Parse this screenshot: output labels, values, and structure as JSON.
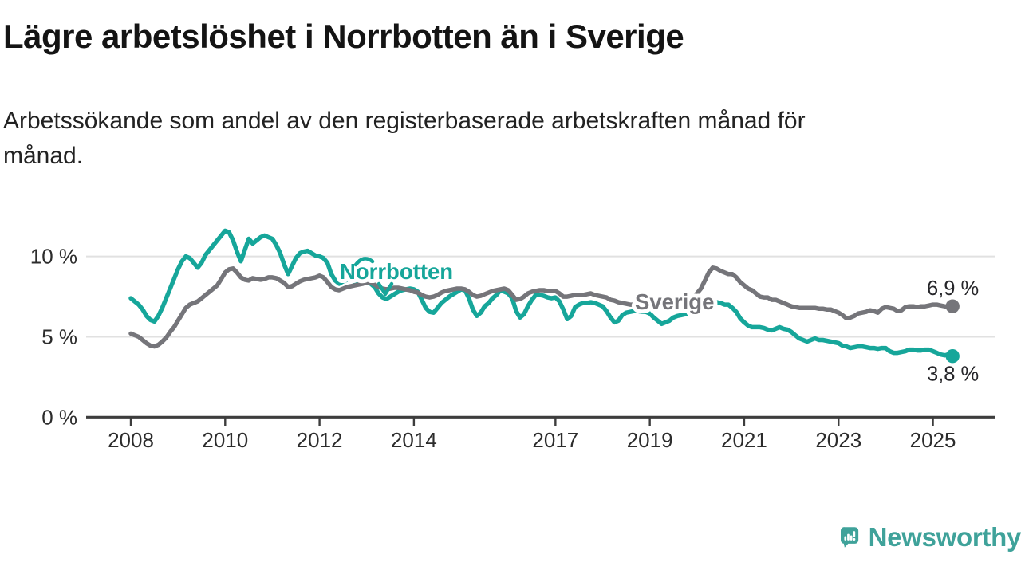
{
  "header": {
    "title": "Lägre arbetslöshet i Norrbotten än i Sverige",
    "subtitle_lines": [
      "Arbetssökande som andel av den registerbaserade arbetskraften månad för",
      "månad."
    ]
  },
  "branding": {
    "logo_text": "Newsworthy",
    "logo_color": "#3fa29a"
  },
  "chart_data": {
    "type": "line",
    "title": "Lägre arbetslöshet i Norrbotten än i Sverige",
    "xlabel": "",
    "ylabel": "",
    "unit": "%",
    "grid": "horizontal",
    "legend_position": "inline-labels",
    "x_start_year": 2008,
    "points_per_year": 12,
    "x_ticks": [
      2008,
      2010,
      2012,
      2014,
      2017,
      2019,
      2021,
      2023,
      2025
    ],
    "y_ticks": [
      {
        "value": 0,
        "label": "0 %"
      },
      {
        "value": 5,
        "label": "5 %"
      },
      {
        "value": 10,
        "label": "10 %"
      }
    ],
    "ylim": [
      0,
      12.5
    ],
    "axis_color": "#3d3d3d",
    "grid_color": "#e1e1e1",
    "tick_text_color": "#2c2c2c",
    "end_label_color": "#26262a",
    "series": [
      {
        "name": "Norrbotten",
        "color": "#16a69a",
        "end_value": 3.8,
        "end_label": "3,8 %",
        "label_pos": {
          "x": 426,
          "y": 350
        },
        "label_arrow": true,
        "end_label_offset": {
          "dx": 33,
          "dy": 31
        },
        "values_by_year": [
          [
            7.4,
            7.2,
            7.0,
            6.7,
            6.3,
            6.05,
            5.95,
            6.3,
            6.8,
            7.4,
            8.0,
            8.6
          ],
          [
            9.2,
            9.7,
            10.0,
            9.9,
            9.6,
            9.3,
            9.6,
            10.1,
            10.4,
            10.7,
            11.0,
            11.3
          ],
          [
            11.6,
            11.5,
            11.0,
            10.3,
            9.7,
            10.4,
            11.1,
            10.8,
            11.0,
            11.2,
            11.3,
            11.2
          ],
          [
            11.1,
            10.7,
            10.2,
            9.5,
            8.9,
            9.4,
            9.9,
            10.2,
            10.3,
            10.35,
            10.2,
            10.05
          ],
          [
            10.0,
            9.9,
            9.6,
            8.9,
            8.5,
            8.3,
            8.45,
            8.55,
            8.5,
            8.45,
            8.4,
            8.35
          ],
          [
            8.4,
            8.3,
            8.1,
            7.7,
            7.45,
            7.35,
            7.5,
            7.65,
            7.8,
            7.9,
            7.95,
            8.0
          ],
          [
            7.95,
            7.8,
            7.3,
            6.8,
            6.55,
            6.5,
            6.8,
            7.1,
            7.3,
            7.5,
            7.65,
            7.8
          ],
          [
            7.95,
            7.9,
            7.4,
            6.7,
            6.3,
            6.5,
            6.9,
            7.1,
            7.4,
            7.6,
            7.9,
            7.8
          ],
          [
            7.7,
            7.4,
            6.6,
            6.2,
            6.4,
            6.9,
            7.3,
            7.6,
            7.6,
            7.55,
            7.45,
            7.4
          ],
          [
            7.45,
            7.2,
            6.7,
            6.1,
            6.3,
            6.85,
            7.0,
            7.1,
            7.1,
            7.15,
            7.1,
            7.0
          ],
          [
            6.9,
            6.6,
            6.2,
            5.9,
            6.0,
            6.35,
            6.5,
            6.55,
            6.6,
            6.6,
            6.55,
            6.55
          ],
          [
            6.45,
            6.2,
            6.0,
            5.8,
            5.9,
            6.0,
            6.2,
            6.3,
            6.35,
            6.4,
            6.4,
            6.4
          ],
          [
            6.45,
            6.6,
            6.9,
            7.05,
            7.2,
            7.15,
            7.1,
            7.0,
            7.0,
            6.8,
            6.55,
            6.15
          ],
          [
            5.9,
            5.7,
            5.6,
            5.6,
            5.6,
            5.55,
            5.45,
            5.4,
            5.5,
            5.6,
            5.5,
            5.45
          ],
          [
            5.3,
            5.1,
            4.9,
            4.8,
            4.7,
            4.8,
            4.9,
            4.8,
            4.8,
            4.75,
            4.7,
            4.65
          ],
          [
            4.6,
            4.45,
            4.4,
            4.3,
            4.35,
            4.4,
            4.4,
            4.35,
            4.3,
            4.3,
            4.25,
            4.3
          ],
          [
            4.3,
            4.1,
            4.0,
            4.0,
            4.05,
            4.1,
            4.2,
            4.2,
            4.15,
            4.15,
            4.2,
            4.2
          ],
          [
            4.1,
            4.0,
            3.9,
            3.85,
            3.9,
            3.8
          ]
        ]
      },
      {
        "name": "Sverige",
        "color": "#75757a",
        "end_value": 6.9,
        "end_label": "6,9 %",
        "label_pos": {
          "x": 796,
          "y": 388
        },
        "label_arrow": false,
        "end_label_offset": {
          "dx": 33,
          "dy": -14
        },
        "values_by_year": [
          [
            5.2,
            5.1,
            5.0,
            4.8,
            4.6,
            4.45,
            4.4,
            4.5,
            4.7,
            4.95,
            5.3,
            5.6
          ],
          [
            6.0,
            6.4,
            6.8,
            7.0,
            7.1,
            7.2,
            7.4,
            7.6,
            7.8,
            8.0,
            8.2,
            8.6
          ],
          [
            9.0,
            9.2,
            9.25,
            9.0,
            8.7,
            8.55,
            8.5,
            8.65,
            8.6,
            8.55,
            8.6,
            8.7
          ],
          [
            8.7,
            8.65,
            8.5,
            8.35,
            8.1,
            8.15,
            8.3,
            8.45,
            8.55,
            8.6,
            8.65,
            8.7
          ],
          [
            8.8,
            8.7,
            8.4,
            8.1,
            7.95,
            7.9,
            8.0,
            8.1,
            8.15,
            8.2,
            8.25,
            8.3
          ],
          [
            8.4,
            8.35,
            8.25,
            8.1,
            8.0,
            7.95,
            8.0,
            8.05,
            8.05,
            8.0,
            7.95,
            7.9
          ],
          [
            7.8,
            7.75,
            7.6,
            7.5,
            7.45,
            7.5,
            7.6,
            7.75,
            7.85,
            7.9,
            7.95,
            8.0
          ],
          [
            8.0,
            7.95,
            7.8,
            7.6,
            7.5,
            7.55,
            7.65,
            7.75,
            7.85,
            7.9,
            7.95,
            8.0
          ],
          [
            7.9,
            7.6,
            7.3,
            7.35,
            7.5,
            7.7,
            7.8,
            7.85,
            7.9,
            7.9,
            7.85,
            7.85
          ],
          [
            7.85,
            7.7,
            7.5,
            7.5,
            7.55,
            7.6,
            7.6,
            7.6,
            7.65,
            7.7,
            7.6,
            7.55
          ],
          [
            7.5,
            7.45,
            7.3,
            7.25,
            7.15,
            7.1,
            7.05,
            7.0,
            7.0,
            7.0,
            7.0,
            7.0
          ],
          [
            7.0,
            6.95,
            6.9,
            6.9,
            6.9,
            6.95,
            7.0,
            7.0,
            7.05,
            7.1,
            7.2,
            7.4
          ],
          [
            7.7,
            8.0,
            8.5,
            9.0,
            9.3,
            9.25,
            9.1,
            9.0,
            8.9,
            8.9,
            8.7,
            8.4
          ],
          [
            8.2,
            8.0,
            7.9,
            7.7,
            7.5,
            7.45,
            7.45,
            7.3,
            7.3,
            7.2,
            7.1,
            7.0
          ],
          [
            6.9,
            6.85,
            6.8,
            6.8,
            6.8,
            6.8,
            6.8,
            6.75,
            6.75,
            6.7,
            6.7,
            6.6
          ],
          [
            6.5,
            6.35,
            6.15,
            6.2,
            6.3,
            6.45,
            6.5,
            6.55,
            6.65,
            6.6,
            6.5,
            6.75
          ],
          [
            6.85,
            6.8,
            6.75,
            6.6,
            6.65,
            6.85,
            6.9,
            6.9,
            6.85,
            6.9,
            6.9,
            6.95
          ],
          [
            7.0,
            7.0,
            6.95,
            6.9,
            6.85,
            6.9
          ]
        ]
      }
    ]
  }
}
